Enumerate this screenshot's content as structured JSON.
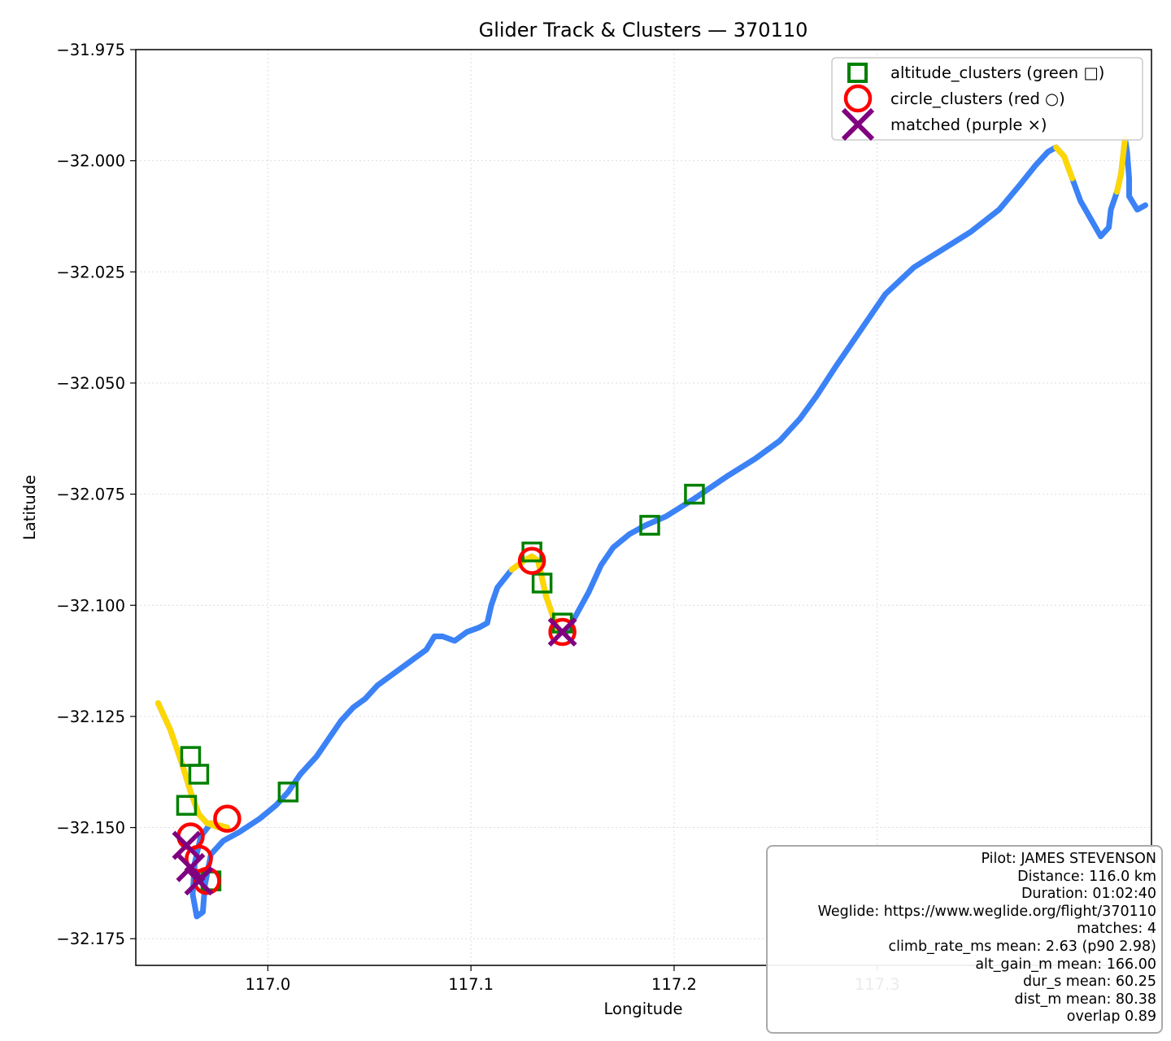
{
  "chart_data": {
    "type": "scatter",
    "title": "Glider Track & Clusters — 370110",
    "xlabel": "Longitude",
    "ylabel": "Latitude",
    "xlim": [
      116.935,
      117.435
    ],
    "ylim": [
      -32.181,
      -31.975
    ],
    "xticks": [
      "117.0",
      "117.1",
      "117.2",
      "117.3"
    ],
    "xtick_values": [
      117.0,
      117.1,
      117.2,
      117.3
    ],
    "yticks": [
      "−31.975",
      "−32.000",
      "−32.025",
      "−32.050",
      "−32.075",
      "−32.100",
      "−32.125",
      "−32.150",
      "−32.175"
    ],
    "ytick_values": [
      -31.975,
      -32.0,
      -32.025,
      -32.05,
      -32.075,
      -32.1,
      -32.125,
      -32.15,
      -32.175
    ],
    "grid": true,
    "legend_position": "top-right",
    "colors": {
      "track_cruise": "#3b82f6",
      "track_climb": "#ffd700",
      "altitude_clusters": "#008000",
      "circle_clusters": "#ff0000",
      "matched": "#800080"
    },
    "legend": [
      {
        "label": "altitude_clusters (green □)",
        "marker": "square",
        "color": "#008000"
      },
      {
        "label": "circle_clusters (red ○)",
        "marker": "circle",
        "color": "#ff0000"
      },
      {
        "label": "matched (purple ×)",
        "marker": "x",
        "color": "#800080"
      }
    ],
    "track": [
      [
        116.946,
        -32.122
      ],
      [
        116.952,
        -32.128
      ],
      [
        116.958,
        -32.136
      ],
      [
        116.962,
        -32.142
      ],
      [
        116.966,
        -32.147
      ],
      [
        116.97,
        -32.149
      ],
      [
        116.976,
        -32.15
      ],
      [
        116.98,
        -32.15
      ],
      [
        116.972,
        -32.149
      ],
      [
        116.967,
        -32.152
      ],
      [
        116.964,
        -32.158
      ],
      [
        116.963,
        -32.165
      ],
      [
        116.965,
        -32.17
      ],
      [
        116.968,
        -32.169
      ],
      [
        116.969,
        -32.163
      ],
      [
        116.972,
        -32.156
      ],
      [
        116.978,
        -32.153
      ],
      [
        116.986,
        -32.151
      ],
      [
        116.996,
        -32.148
      ],
      [
        117.004,
        -32.145
      ],
      [
        117.01,
        -32.142
      ],
      [
        117.016,
        -32.138
      ],
      [
        117.024,
        -32.134
      ],
      [
        117.03,
        -32.13
      ],
      [
        117.036,
        -32.126
      ],
      [
        117.042,
        -32.123
      ],
      [
        117.048,
        -32.121
      ],
      [
        117.054,
        -32.118
      ],
      [
        117.06,
        -32.116
      ],
      [
        117.066,
        -32.114
      ],
      [
        117.072,
        -32.112
      ],
      [
        117.078,
        -32.11
      ],
      [
        117.082,
        -32.107
      ],
      [
        117.086,
        -32.107
      ],
      [
        117.092,
        -32.108
      ],
      [
        117.098,
        -32.106
      ],
      [
        117.104,
        -32.105
      ],
      [
        117.108,
        -32.104
      ],
      [
        117.11,
        -32.1
      ],
      [
        117.113,
        -32.096
      ],
      [
        117.12,
        -32.092
      ],
      [
        117.126,
        -32.09
      ],
      [
        117.13,
        -32.089
      ],
      [
        117.133,
        -32.09
      ],
      [
        117.135,
        -32.094
      ],
      [
        117.137,
        -32.098
      ],
      [
        117.14,
        -32.102
      ],
      [
        117.143,
        -32.106
      ],
      [
        117.147,
        -32.106
      ],
      [
        117.152,
        -32.102
      ],
      [
        117.158,
        -32.097
      ],
      [
        117.164,
        -32.091
      ],
      [
        117.17,
        -32.087
      ],
      [
        117.178,
        -32.084
      ],
      [
        117.186,
        -32.082
      ],
      [
        117.196,
        -32.08
      ],
      [
        117.21,
        -32.076
      ],
      [
        117.226,
        -32.071
      ],
      [
        117.24,
        -32.067
      ],
      [
        117.252,
        -32.063
      ],
      [
        117.262,
        -32.058
      ],
      [
        117.27,
        -32.053
      ],
      [
        117.28,
        -32.046
      ],
      [
        117.292,
        -32.038
      ],
      [
        117.304,
        -32.03
      ],
      [
        117.318,
        -32.024
      ],
      [
        117.332,
        -32.02
      ],
      [
        117.346,
        -32.016
      ],
      [
        117.36,
        -32.011
      ],
      [
        117.371,
        -32.005
      ],
      [
        117.378,
        -32.001
      ],
      [
        117.384,
        -31.998
      ],
      [
        117.388,
        -31.997
      ],
      [
        117.392,
        -31.999
      ],
      [
        117.396,
        -32.004
      ],
      [
        117.4,
        -32.009
      ],
      [
        117.405,
        -32.013
      ],
      [
        117.41,
        -32.017
      ],
      [
        117.414,
        -32.015
      ],
      [
        117.415,
        -32.011
      ],
      [
        117.418,
        -32.007
      ],
      [
        117.42,
        -32.003
      ],
      [
        117.421,
        -31.999
      ],
      [
        117.422,
        -31.995
      ],
      [
        117.423,
        -31.998
      ],
      [
        117.424,
        -32.004
      ],
      [
        117.424,
        -32.008
      ],
      [
        117.428,
        -32.011
      ],
      [
        117.432,
        -32.01
      ]
    ],
    "climb_segments": [
      {
        "from": 0,
        "to": 8
      },
      {
        "from": 40,
        "to": 47
      },
      {
        "from": 72,
        "to": 74
      },
      {
        "from": 80,
        "to": 83
      }
    ],
    "altitude_clusters": [
      [
        116.96,
        -32.145
      ],
      [
        116.962,
        -32.134
      ],
      [
        116.966,
        -32.138
      ],
      [
        116.972,
        -32.162
      ],
      [
        117.01,
        -32.142
      ],
      [
        117.13,
        -32.088
      ],
      [
        117.135,
        -32.095
      ],
      [
        117.145,
        -32.104
      ],
      [
        117.188,
        -32.082
      ],
      [
        117.21,
        -32.075
      ]
    ],
    "circle_clusters": [
      [
        116.962,
        -32.152
      ],
      [
        116.966,
        -32.157
      ],
      [
        116.97,
        -32.162
      ],
      [
        116.98,
        -32.148
      ],
      [
        117.13,
        -32.09
      ],
      [
        117.145,
        -32.106
      ]
    ],
    "matched": [
      [
        116.96,
        -32.154
      ],
      [
        116.962,
        -32.159
      ],
      [
        116.966,
        -32.162
      ],
      [
        117.145,
        -32.106
      ]
    ]
  },
  "info_box": {
    "lines": [
      "Pilot: JAMES STEVENSON",
      "Distance: 116.0 km",
      "Duration: 01:02:40",
      "Weglide: https://www.weglide.org/flight/370110",
      "matches: 4",
      "climb_rate_ms mean: 2.63 (p90 2.98)",
      "alt_gain_m mean: 166.00",
      "dur_s mean: 60.25",
      "dist_m mean: 80.38",
      "overlap 0.89"
    ]
  }
}
